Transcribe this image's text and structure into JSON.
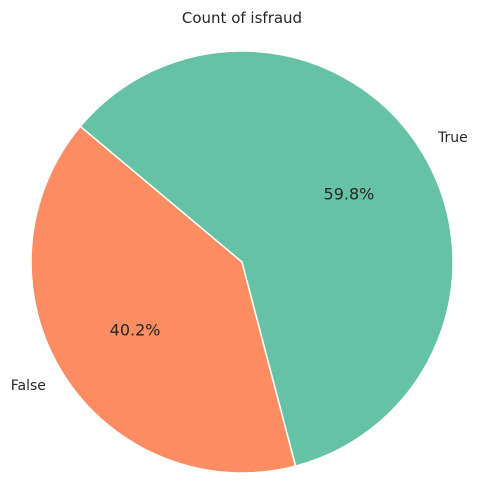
{
  "chart_data": {
    "type": "pie",
    "title": "Count of isfraud",
    "labels": [
      "False",
      "True"
    ],
    "percent_labels": [
      "40.2%",
      "59.8%"
    ],
    "values": [
      40.2,
      59.8
    ],
    "colors": [
      "#fc8d62",
      "#66c2a5"
    ],
    "start_angle_deg": 140,
    "direction": "counterclockwise",
    "edge_color": "#ffffff"
  }
}
